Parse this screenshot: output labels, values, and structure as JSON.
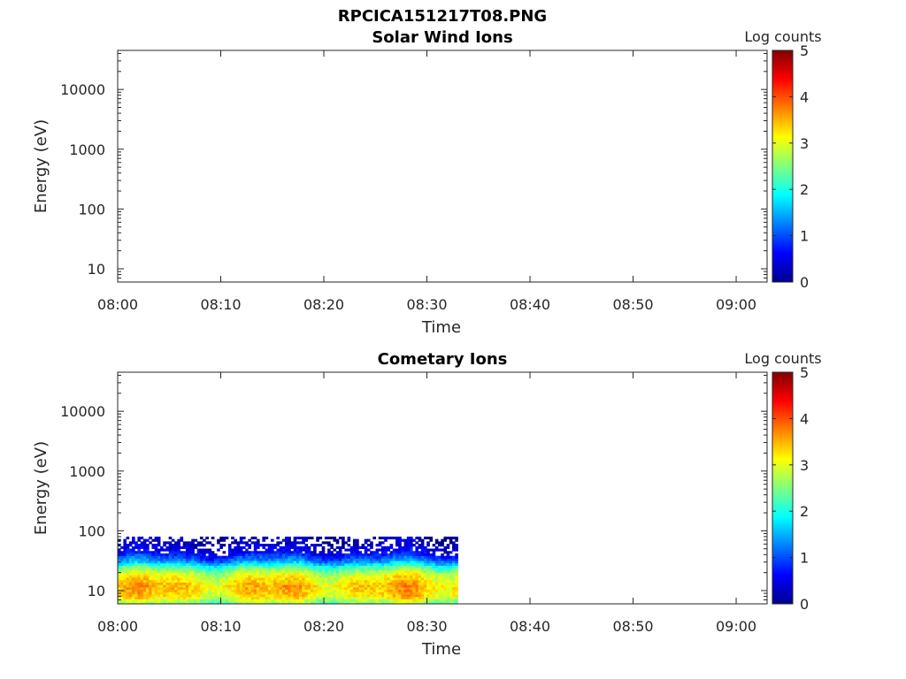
{
  "figure": {
    "title": "RPCICA151217T08.PNG"
  },
  "chart_data": [
    {
      "type": "heatmap",
      "title": "Solar Wind Ions",
      "xlabel": "Time",
      "ylabel": "Energy (eV)",
      "xticks": [
        "08:00",
        "08:10",
        "08:20",
        "08:30",
        "08:40",
        "08:50",
        "09:00"
      ],
      "xlim": [
        "08:00",
        "09:03"
      ],
      "ylog": true,
      "ylim": [
        6,
        45000
      ],
      "yticks": [
        10,
        100,
        1000,
        10000
      ],
      "ytick_labels": [
        "10",
        "100",
        "1000",
        "10000"
      ],
      "colorbar": {
        "label": "Log counts",
        "range": [
          0,
          5
        ],
        "ticks": [
          "0",
          "1",
          "2",
          "3",
          "4",
          "5"
        ],
        "colormap": "jet"
      },
      "data_coverage": null
    },
    {
      "type": "heatmap",
      "title": "Cometary Ions",
      "xlabel": "Time",
      "ylabel": "Energy (eV)",
      "xticks": [
        "08:00",
        "08:10",
        "08:20",
        "08:30",
        "08:40",
        "08:50",
        "09:00"
      ],
      "xlim": [
        "08:00",
        "09:03"
      ],
      "ylog": true,
      "ylim": [
        6,
        45000
      ],
      "yticks": [
        10,
        100,
        1000,
        10000
      ],
      "ytick_labels": [
        "10",
        "100",
        "1000",
        "10000"
      ],
      "colorbar": {
        "label": "Log counts",
        "range": [
          0,
          5
        ],
        "ticks": [
          "0",
          "1",
          "2",
          "3",
          "4",
          "5"
        ],
        "colormap": "jet"
      },
      "data_coverage": {
        "time_range": [
          "08:00",
          "08:33"
        ],
        "energy_range_eV": [
          6,
          80
        ],
        "log_counts_by_energy": [
          {
            "energy_eV": 6.5,
            "log_counts": 2.6
          },
          {
            "energy_eV": 8,
            "log_counts": 3.2
          },
          {
            "energy_eV": 12,
            "log_counts": 3.4
          },
          {
            "energy_eV": 18,
            "log_counts": 3.0
          },
          {
            "energy_eV": 25,
            "log_counts": 2.2
          },
          {
            "energy_eV": 32,
            "log_counts": 1.2
          },
          {
            "energy_eV": 45,
            "log_counts": 0.5
          },
          {
            "energy_eV": 65,
            "log_counts": 0.2
          }
        ]
      }
    }
  ]
}
